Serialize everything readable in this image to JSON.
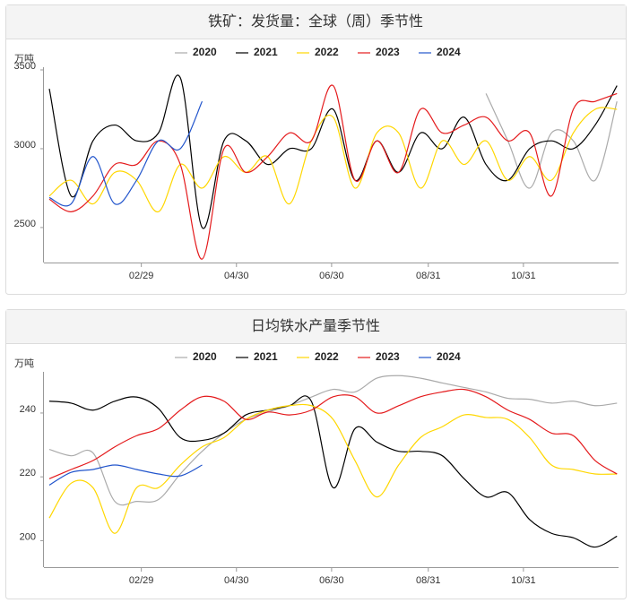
{
  "chart_data": [
    {
      "type": "line",
      "title": "铁矿：发货量：全球（周）季节性",
      "y_label": "万吨",
      "x": [
        1,
        15,
        29,
        43,
        57,
        71,
        85,
        99,
        113,
        127,
        141,
        155,
        169,
        183,
        197,
        211,
        225,
        239,
        253,
        267,
        281,
        295,
        309,
        323,
        337,
        351,
        365
      ],
      "xlim": [
        1,
        366
      ],
      "xticks": [
        {
          "value": 60,
          "label": "02/29"
        },
        {
          "value": 121,
          "label": "04/30"
        },
        {
          "value": 182,
          "label": "06/30"
        },
        {
          "value": 244,
          "label": "08/31"
        },
        {
          "value": 305,
          "label": "10/31"
        }
      ],
      "ylim": [
        2278,
        3517
      ],
      "yticks": [
        2500,
        3000,
        3500
      ],
      "series": [
        {
          "name": "2020",
          "color": "#aaaaaa",
          "values": [
            null,
            null,
            null,
            null,
            null,
            null,
            null,
            null,
            null,
            null,
            null,
            null,
            null,
            null,
            null,
            null,
            null,
            null,
            null,
            null,
            3350,
            3050,
            2750,
            3100,
            3050,
            2800,
            3300
          ]
        },
        {
          "name": "2021",
          "color": "#000000",
          "values": [
            3380,
            2700,
            3050,
            3150,
            3050,
            3100,
            3450,
            2500,
            3050,
            3050,
            2900,
            3000,
            3000,
            3250,
            2800,
            3050,
            2850,
            3100,
            3000,
            3200,
            2900,
            2800,
            3000,
            3050,
            3000,
            3150,
            3400
          ]
        },
        {
          "name": "2022",
          "color": "#ffd700",
          "values": [
            2700,
            2800,
            2650,
            2850,
            2800,
            2600,
            2900,
            2750,
            2950,
            2850,
            2950,
            2650,
            3050,
            3200,
            2750,
            3100,
            3100,
            2750,
            3050,
            2900,
            3050,
            2800,
            2950,
            2800,
            3100,
            3250,
            3250
          ]
        },
        {
          "name": "2023",
          "color": "#e41a1c",
          "values": [
            2680,
            2600,
            2700,
            2900,
            2900,
            3050,
            2900,
            2300,
            3000,
            2850,
            2950,
            3100,
            3050,
            3400,
            2800,
            3050,
            2850,
            3250,
            3100,
            3150,
            3200,
            3050,
            3100,
            2700,
            3250,
            3300,
            3350
          ]
        },
        {
          "name": "2024",
          "color": "#2255cc",
          "values": [
            2690,
            2650,
            2950,
            2650,
            2800,
            3050,
            3000,
            3300,
            null,
            null,
            null,
            null,
            null,
            null,
            null,
            null,
            null,
            null,
            null,
            null,
            null,
            null,
            null,
            null,
            null,
            null,
            null
          ]
        }
      ]
    },
    {
      "type": "line",
      "title": "日均铁水产量季节性",
      "y_label": "万吨",
      "x": [
        1,
        15,
        29,
        43,
        57,
        71,
        85,
        99,
        113,
        127,
        141,
        155,
        169,
        183,
        197,
        211,
        225,
        239,
        253,
        267,
        281,
        295,
        309,
        323,
        337,
        351,
        365
      ],
      "xlim": [
        1,
        366
      ],
      "xticks": [
        {
          "value": 60,
          "label": "02/29"
        },
        {
          "value": 121,
          "label": "04/30"
        },
        {
          "value": 182,
          "label": "06/30"
        },
        {
          "value": 244,
          "label": "08/31"
        },
        {
          "value": 305,
          "label": "10/31"
        }
      ],
      "ylim": [
        191.7,
        252.9
      ],
      "yticks": [
        200,
        220,
        240
      ],
      "series": [
        {
          "name": "2020",
          "color": "#aaaaaa",
          "values": [
            228.6,
            226.6,
            227.5,
            212.3,
            212.3,
            212.9,
            220.9,
            228,
            233.7,
            238,
            240.3,
            242.3,
            245,
            247.4,
            246.6,
            250.9,
            251.7,
            250.9,
            249.4,
            248,
            246.6,
            244.6,
            244.3,
            243.1,
            243.7,
            242.3,
            243.1
          ]
        },
        {
          "name": "2021",
          "color": "#000000",
          "values": [
            243.7,
            243.1,
            240.9,
            243.7,
            245,
            241.4,
            232.3,
            231.4,
            233.7,
            239.4,
            240.9,
            242.3,
            243.7,
            216.6,
            235.1,
            230.9,
            228,
            228,
            226.6,
            219.4,
            213.7,
            215.1,
            206.6,
            202.3,
            200.9,
            198,
            201.4
          ]
        },
        {
          "name": "2022",
          "color": "#ffd700",
          "values": [
            207.1,
            218,
            216.6,
            202.3,
            216.6,
            216.6,
            223.7,
            229.4,
            232.3,
            238,
            240.9,
            242.3,
            242.3,
            238,
            225.1,
            213.7,
            223.7,
            232.3,
            235.7,
            239.4,
            238.6,
            238,
            232.3,
            223.7,
            222.3,
            220.9,
            220.9
          ]
        },
        {
          "name": "2023",
          "color": "#e41a1c",
          "values": [
            219.4,
            222.3,
            225.1,
            229.4,
            232.9,
            235.1,
            240.9,
            245.1,
            243.7,
            238,
            240.3,
            239.4,
            240.9,
            245.1,
            245.1,
            240,
            242.3,
            245.1,
            246.6,
            247.4,
            245.1,
            240.9,
            238,
            233.7,
            232.9,
            225.1,
            220.9
          ]
        },
        {
          "name": "2024",
          "color": "#2255cc",
          "values": [
            217.4,
            221.4,
            222.3,
            223.7,
            222.3,
            220.9,
            220.3,
            223.7,
            null,
            null,
            null,
            null,
            null,
            null,
            null,
            null,
            null,
            null,
            null,
            null,
            null,
            null,
            null,
            null,
            null,
            null,
            null
          ]
        }
      ]
    }
  ]
}
